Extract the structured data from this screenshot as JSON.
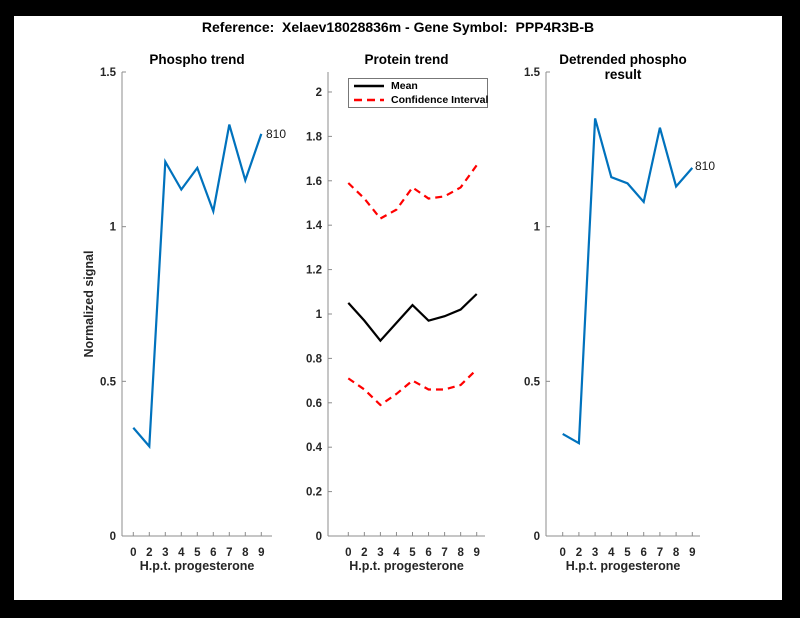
{
  "window": {
    "frame_color": "#000000",
    "canvas_color": "#ffffff"
  },
  "title": "Reference:  Xelaev18028836m - Gene Symbol:  PPP4R3B-B",
  "accent_colors": {
    "blue_line": "#0072BD",
    "mean_line": "#000000",
    "ci_line": "#ff0000"
  },
  "chart_data": [
    {
      "type": "line",
      "title": "Phospho trend",
      "xlabel": "H.p.t. progesterone",
      "ylabel": "Normalized signal",
      "x_categories": [
        "0",
        "2",
        "3",
        "4",
        "5",
        "6",
        "7",
        "8",
        "9"
      ],
      "ylim": [
        0,
        1.5
      ],
      "yticks": [
        "0",
        "0.5",
        "1",
        "1.5"
      ],
      "grid": "off",
      "end_label": "810",
      "series": [
        {
          "name": "810",
          "color": "#0072BD",
          "style": "solid",
          "values": [
            0.35,
            0.29,
            1.21,
            1.12,
            1.19,
            1.05,
            1.33,
            1.15,
            1.3
          ]
        }
      ]
    },
    {
      "type": "line",
      "title": "Protein trend",
      "xlabel": "H.p.t. progesterone",
      "ylabel": "",
      "x_categories": [
        "0",
        "2",
        "3",
        "4",
        "5",
        "6",
        "7",
        "8",
        "9"
      ],
      "ylim": [
        0,
        2.09
      ],
      "yticks": [
        "0",
        "0.2",
        "0.4",
        "0.6",
        "0.8",
        "1",
        "1.2",
        "1.4",
        "1.6",
        "1.8",
        "2"
      ],
      "grid": "off",
      "legend": {
        "position": "northwest",
        "entries": [
          "Mean",
          "Confidence Interval"
        ]
      },
      "series": [
        {
          "name": "Mean",
          "color": "#000000",
          "style": "solid",
          "values": [
            1.05,
            0.97,
            0.88,
            0.96,
            1.04,
            0.97,
            0.99,
            1.02,
            1.09
          ]
        },
        {
          "name": "Confidence Interval",
          "color": "#ff0000",
          "style": "dashed",
          "values": [
            1.59,
            1.52,
            1.43,
            1.47,
            1.57,
            1.52,
            1.53,
            1.57,
            1.67
          ]
        },
        {
          "name": "Confidence Interval",
          "color": "#ff0000",
          "style": "dashed",
          "values": [
            0.71,
            0.66,
            0.59,
            0.64,
            0.7,
            0.66,
            0.66,
            0.68,
            0.75
          ]
        }
      ]
    },
    {
      "type": "line",
      "title": "Detrended phospho result",
      "xlabel": "H.p.t. progesterone",
      "ylabel": "",
      "x_categories": [
        "0",
        "2",
        "3",
        "4",
        "5",
        "6",
        "7",
        "8",
        "9"
      ],
      "ylim": [
        0,
        1.5
      ],
      "yticks": [
        "0",
        "0.5",
        "1",
        "1.5"
      ],
      "grid": "off",
      "end_label": "810",
      "series": [
        {
          "name": "810",
          "color": "#0072BD",
          "style": "solid",
          "values": [
            0.33,
            0.3,
            1.35,
            1.16,
            1.14,
            1.08,
            1.32,
            1.13,
            1.19
          ]
        }
      ]
    }
  ]
}
